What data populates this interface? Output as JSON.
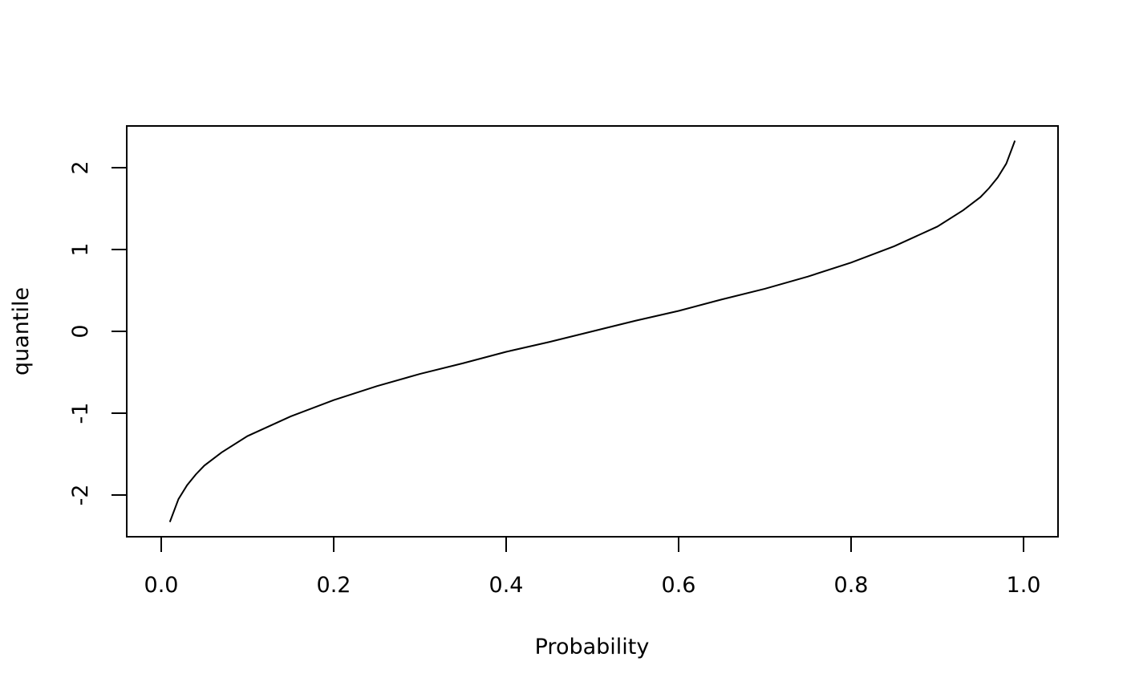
{
  "chart_data": {
    "type": "line",
    "x_label": "Probability",
    "y_label": "quantile",
    "x": [
      0.01,
      0.02,
      0.03,
      0.04,
      0.05,
      0.07,
      0.1,
      0.15,
      0.2,
      0.25,
      0.3,
      0.35,
      0.4,
      0.45,
      0.5,
      0.55,
      0.6,
      0.65,
      0.7,
      0.75,
      0.8,
      0.85,
      0.9,
      0.93,
      0.95,
      0.96,
      0.97,
      0.98,
      0.99
    ],
    "series": [
      {
        "color": "#000000",
        "values": [
          -2.33,
          -2.05,
          -1.88,
          -1.75,
          -1.64,
          -1.48,
          -1.28,
          -1.04,
          -0.84,
          -0.67,
          -0.52,
          -0.39,
          -0.25,
          -0.13,
          0,
          0.13,
          0.25,
          0.39,
          0.52,
          0.67,
          0.84,
          1.04,
          1.28,
          1.48,
          1.64,
          1.75,
          1.88,
          2.05,
          2.33
        ]
      }
    ],
    "xlim": [
      -0.04,
      1.04
    ],
    "ylim": [
      -2.51,
      2.51
    ],
    "xticks": [
      {
        "value": 0,
        "label": "0.0"
      },
      0.2,
      0.4,
      0.6,
      0.8,
      {
        "value": 1,
        "label": "1.0"
      }
    ],
    "yticks": [
      -2,
      -1,
      0,
      1,
      2
    ]
  }
}
